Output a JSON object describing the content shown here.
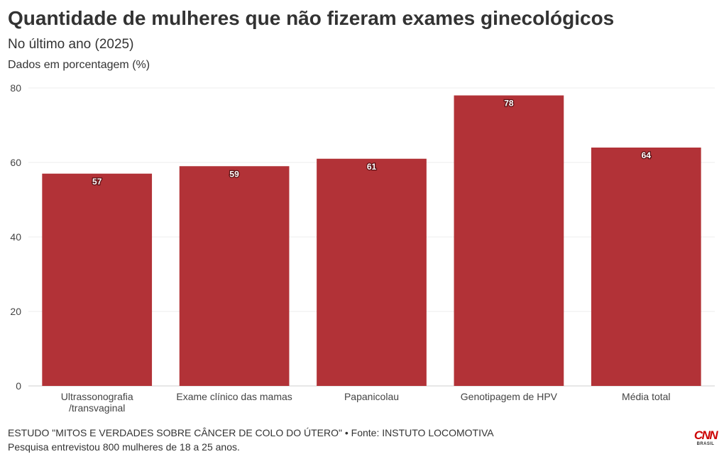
{
  "header": {
    "title": "Quantidade de mulheres que não fizeram exames ginecológicos",
    "subtitle": "No último ano (2025)",
    "unit_note": "Dados em porcentagem (%)"
  },
  "footer": {
    "source": "ESTUDO \"MITOS E VERDADES SOBRE CÂNCER DE COLO DO ÚTERO\" • Fonte: INSTUTO LOCOMOTIVA",
    "note": "Pesquisa entrevistou 800 mulheres de 18 a 25 anos."
  },
  "logo": {
    "mark": "CNN",
    "sub": "BRASIL",
    "icon": "cnn-brasil-logo-icon",
    "color": "#cc0000"
  },
  "chart_data": {
    "type": "bar",
    "categories": [
      "Ultrassonografia\n/transvaginal",
      "Exame clínico das mamas",
      "Papanicolau",
      "Genotipagem de HPV",
      "Média total"
    ],
    "values": [
      57,
      59,
      61,
      78,
      64
    ],
    "title": "Quantidade de mulheres que não fizeram exames ginecológicos",
    "subtitle": "No último ano (2025)",
    "ylabel": "",
    "xlabel": "",
    "ylim": [
      0,
      80
    ],
    "yticks": [
      0,
      20,
      40,
      60,
      80
    ],
    "grid": true,
    "legend": "none",
    "bar_color": "#b23237",
    "data_labels": true
  }
}
